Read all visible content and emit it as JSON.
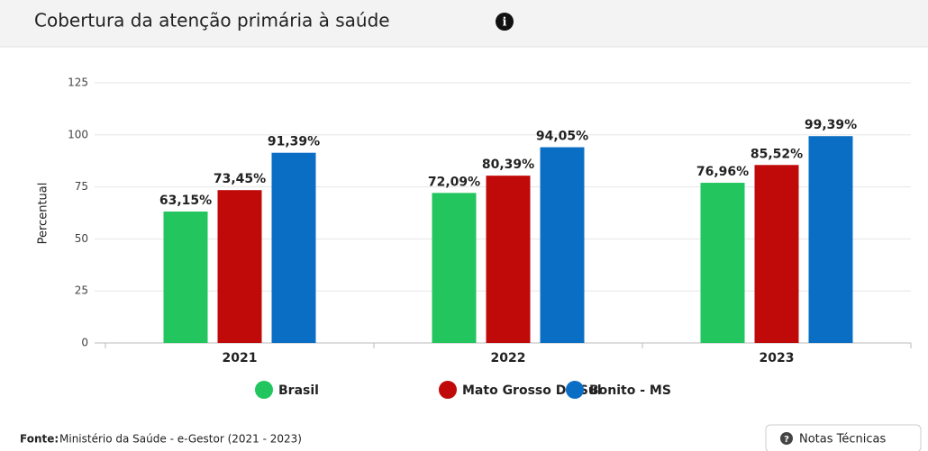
{
  "chart_data": {
    "type": "bar",
    "title": "Cobertura da atenção primária à saúde",
    "y_label": "Percentual",
    "categories": [
      "2021",
      "2022",
      "2023"
    ],
    "series": [
      {
        "name": "Brasil",
        "color": "#22c55e",
        "values": [
          63.15,
          72.09,
          76.96
        ],
        "value_labels": [
          "63,15%",
          "72,09%",
          "76,96%"
        ]
      },
      {
        "name": "Mato Grosso Do Sul",
        "color": "#c00a0a",
        "values": [
          73.45,
          80.39,
          85.52
        ],
        "value_labels": [
          "73,45%",
          "80,39%",
          "85,52%"
        ]
      },
      {
        "name": "Bonito - MS",
        "color": "#0a6fc4",
        "values": [
          91.39,
          94.05,
          99.39
        ],
        "value_labels": [
          "91,39%",
          "94,05%",
          "99,39%"
        ]
      }
    ],
    "ylim": [
      0,
      125
    ],
    "yticks": [
      0,
      25,
      50,
      75,
      100,
      125
    ],
    "grid": true
  },
  "footer": {
    "source_label": "Fonte:",
    "source": "Ministério da Saúde - e-Gestor (2021 - 2023)",
    "button": "Notas Técnicas"
  }
}
